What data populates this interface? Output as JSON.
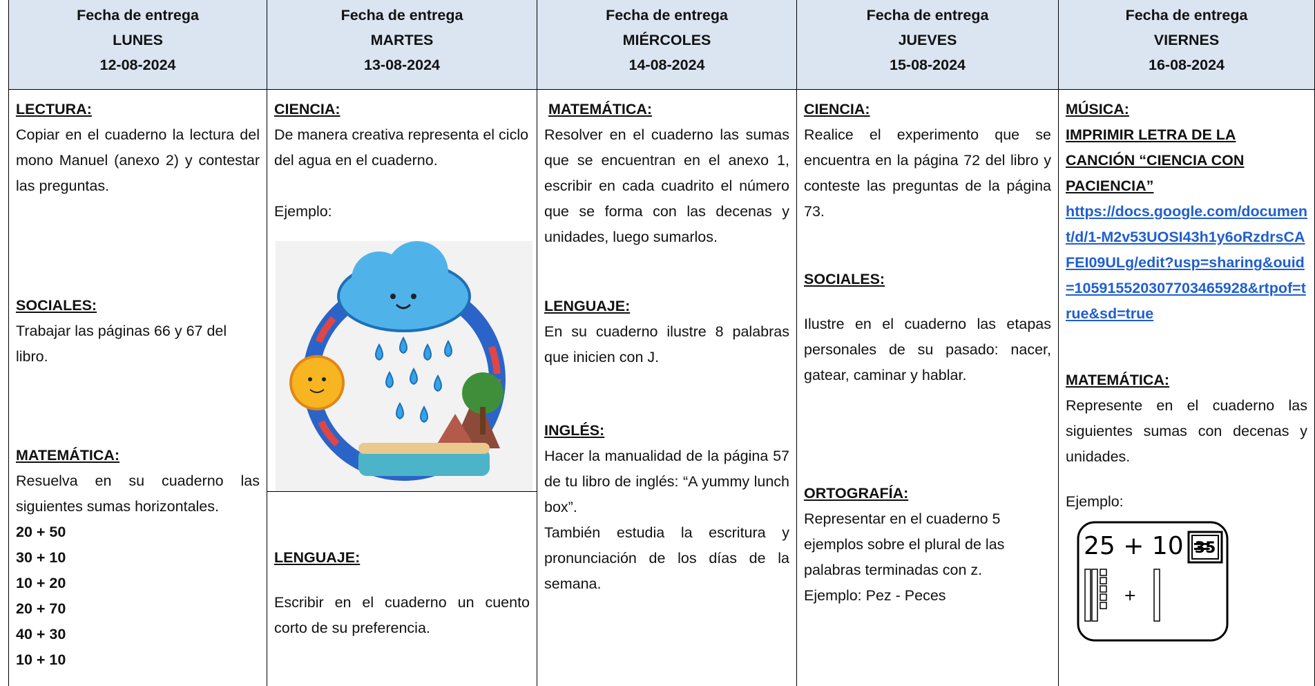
{
  "columns": [
    {
      "header": {
        "label": "Fecha de entrega",
        "day": "LUNES",
        "date": "12-08-2024"
      },
      "blocks": [
        {
          "title": "LECTURA:",
          "text": "Copiar en el cuaderno la lectura del mono Manuel (anexo 2) y contestar las preguntas."
        },
        {
          "title": "SOCIALES:",
          "text": "Trabajar las páginas 66 y 67 del libro."
        },
        {
          "title": "MATEMÁTICA:",
          "text": "Resuelva en su cuaderno las siguientes sumas horizontales.",
          "items": [
            "20 + 50",
            "30 + 10",
            "10 + 20",
            "20 + 70",
            "40 + 30",
            "10 + 10"
          ]
        }
      ]
    },
    {
      "header": {
        "label": "Fecha de entrega",
        "day": "MARTES",
        "date": "13-08-2024"
      },
      "blocks": [
        {
          "title": "CIENCIA:",
          "text": "De manera creativa representa el ciclo del agua en el cuaderno.",
          "example": "Ejemplo:"
        },
        {
          "title": "LENGUAJE:",
          "text": "Escribir en el cuaderno un cuento corto de su preferencia."
        }
      ]
    },
    {
      "header": {
        "label": "Fecha de entrega",
        "day": "MIÉRCOLES",
        "date": "14-08-2024"
      },
      "blocks": [
        {
          "title": "MATEMÁTICA:",
          "text": "Resolver en el cuaderno las sumas que se encuentran en el anexo 1, escribir en cada cuadrito el número que se forma con las decenas y unidades, luego sumarlos."
        },
        {
          "title": "LENGUAJE:",
          "text": "En su cuaderno ilustre 8 palabras que inicien con J."
        },
        {
          "title": "INGLÉS:",
          "text": "Hacer la manualidad de la página 57 de tu libro de inglés: “A yummy lunch box”.",
          "text2": "También estudia la escritura y pronunciación de los días de la semana."
        }
      ]
    },
    {
      "header": {
        "label": "Fecha de entrega",
        "day": "JUEVES",
        "date": "15-08-2024"
      },
      "blocks": [
        {
          "title": "CIENCIA:",
          "text": "Realice el experimento que se encuentra en la página 72 del libro y conteste las preguntas de la página 73."
        },
        {
          "title": "SOCIALES:",
          "text": "Ilustre en el cuaderno las etapas personales de su pasado: nacer, gatear, caminar y hablar."
        },
        {
          "title": "ORTOGRAFÍA:",
          "text": "Representar en el cuaderno 5 ejemplos sobre el plural de las palabras terminadas con z.",
          "text2": "Ejemplo: Pez - Peces"
        }
      ]
    },
    {
      "header": {
        "label": "Fecha de entrega",
        "day": "VIERNES",
        "date": "16-08-2024"
      },
      "blocks": [
        {
          "title": "MÚSICA:",
          "subtitle": "IMPRIMIR LETRA DE LA CANCIÓN “CIENCIA CON PACIENCIA”",
          "link": "https://docs.google.com/document/d/1-M2v53UOSI43h1y6oRzdrsCAFEI09ULg/edit?usp=sharing&ouid=105915520307703465928&rtpof=true&sd=true"
        },
        {
          "title": "MATEMÁTICA:",
          "text": "Represente en el cuaderno las siguientes sumas con decenas y unidades.",
          "example": "Ejemplo:",
          "example_image": {
            "expression": "25 + 10 =",
            "answer": "35"
          }
        }
      ]
    }
  ]
}
